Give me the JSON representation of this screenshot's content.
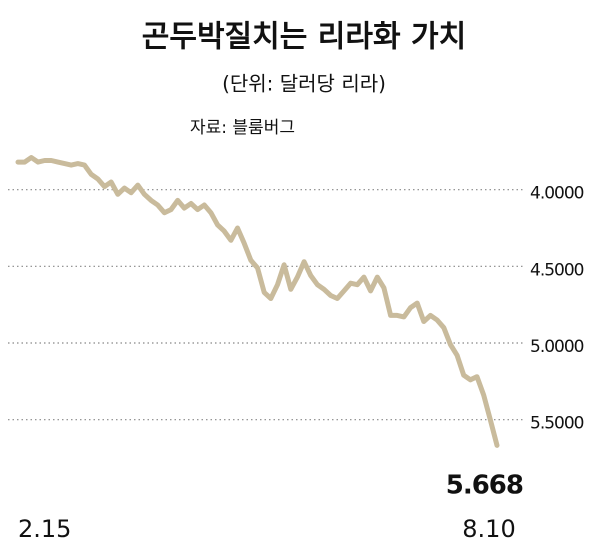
{
  "chart_data": {
    "type": "line",
    "title": "곤두박질치는 리라화 가치",
    "subtitle": "(단위: 달러당 리라)",
    "source": "자료: 블룸버그",
    "color": "#c9bb9c",
    "categories": [
      "2.15",
      null,
      null,
      null,
      null,
      null,
      null,
      null,
      null,
      null,
      null,
      null,
      null,
      null,
      null,
      null,
      null,
      null,
      null,
      null,
      null,
      null,
      null,
      null,
      null,
      null,
      null,
      null,
      null,
      null,
      null,
      null,
      null,
      null,
      null,
      null,
      null,
      null,
      null,
      null,
      null,
      null,
      null,
      null,
      null,
      null,
      null,
      null,
      null,
      null,
      null,
      null,
      null,
      null,
      null,
      null,
      null,
      null,
      null,
      null,
      null,
      null,
      null,
      null,
      null,
      null,
      null,
      null,
      null,
      null,
      null,
      null,
      "8.10"
    ],
    "values": [
      3.82,
      3.82,
      3.79,
      3.82,
      3.81,
      3.81,
      3.82,
      3.83,
      3.84,
      3.83,
      3.84,
      3.9,
      3.93,
      3.98,
      3.95,
      4.03,
      3.99,
      4.02,
      3.97,
      4.03,
      4.07,
      4.1,
      4.15,
      4.13,
      4.07,
      4.12,
      4.09,
      4.13,
      4.1,
      4.15,
      4.23,
      4.27,
      4.33,
      4.25,
      4.35,
      4.46,
      4.51,
      4.67,
      4.71,
      4.62,
      4.49,
      4.65,
      4.57,
      4.47,
      4.56,
      4.62,
      4.65,
      4.69,
      4.71,
      4.66,
      4.61,
      4.62,
      4.57,
      4.66,
      4.57,
      4.64,
      4.82,
      4.82,
      4.83,
      4.77,
      4.74,
      4.86,
      4.82,
      4.85,
      4.9,
      5.01,
      5.08,
      5.21,
      5.24,
      5.22,
      5.34,
      5.5,
      5.668
    ],
    "ylim": [
      5.75,
      3.8
    ],
    "yticks": [
      {
        "value": 4,
        "label": "4.0000"
      },
      {
        "value": 4.5,
        "label": "4.5000"
      },
      {
        "value": 5,
        "label": "5.0000"
      },
      {
        "value": 5.5,
        "label": "5.5000"
      }
    ],
    "grid": true
  }
}
